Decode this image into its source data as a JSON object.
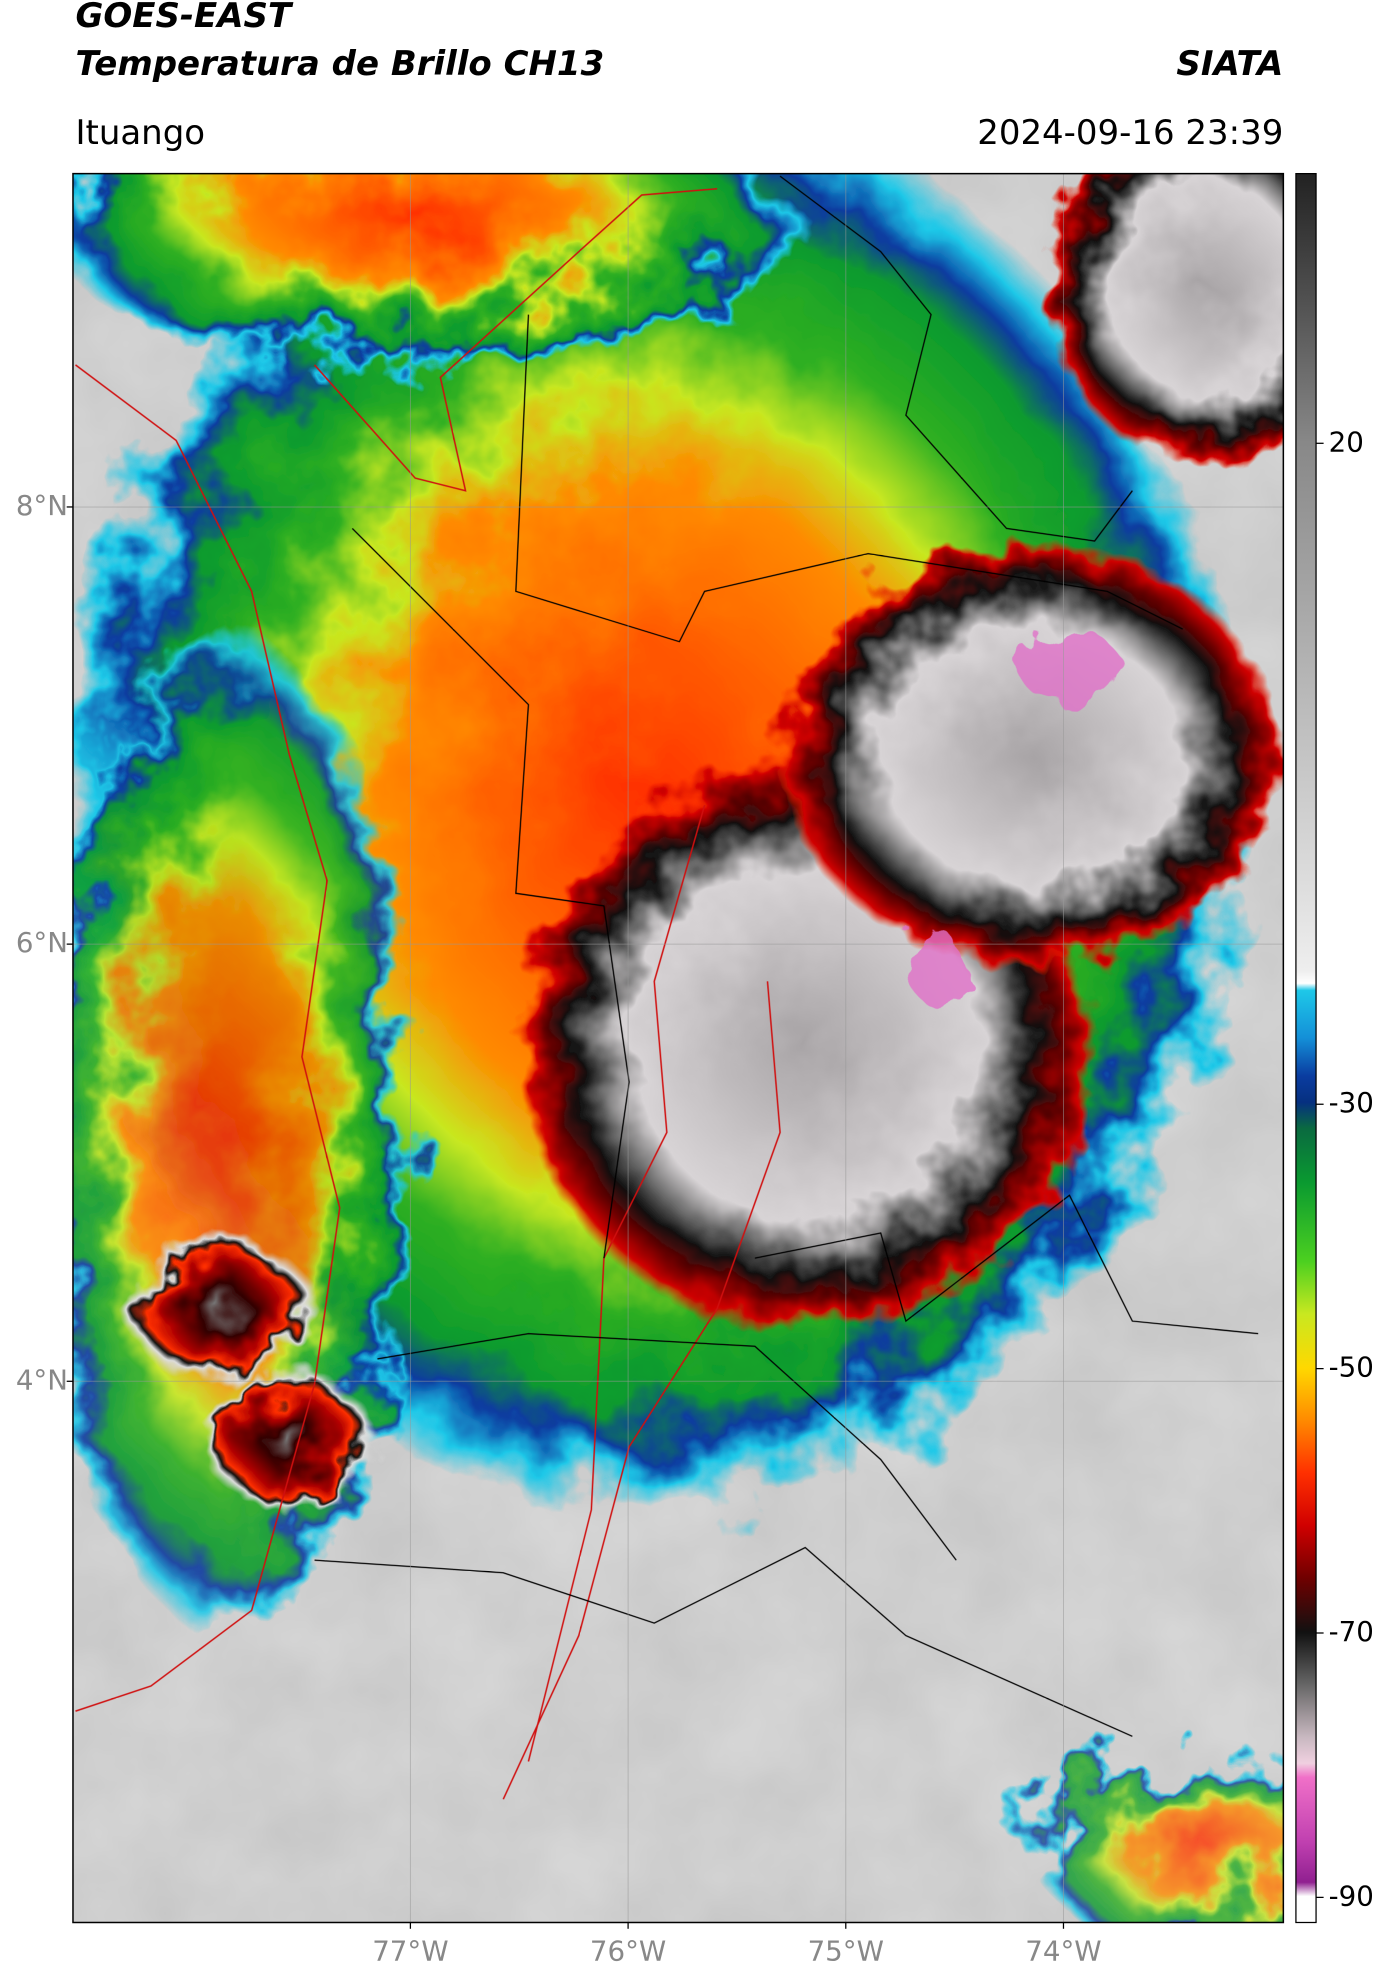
{
  "header": {
    "title": "GOES-EAST",
    "subtitle": "Temperatura de Brillo CH13",
    "source": "SIATA",
    "location": "Ituango",
    "timestamp": "2024-09-16 23:39"
  },
  "map": {
    "lat_lim": [
      1.524,
      9.525
    ],
    "lon_lim": [
      -78.55,
      -72.99
    ],
    "lat_ticks": [
      {
        "value": 8,
        "label": "8°N"
      },
      {
        "value": 6,
        "label": "6°N"
      },
      {
        "value": 4,
        "label": "4°N"
      }
    ],
    "lon_ticks": [
      {
        "value": -77,
        "label": "77°W"
      },
      {
        "value": -76,
        "label": "76°W"
      },
      {
        "value": -75,
        "label": "75°W"
      },
      {
        "value": -74,
        "label": "74°W"
      }
    ],
    "grid": true
  },
  "colorbar": {
    "lim": [
      -91.9,
      40.4
    ],
    "ticks": [
      20,
      -30,
      -50,
      -70,
      -90
    ]
  }
}
